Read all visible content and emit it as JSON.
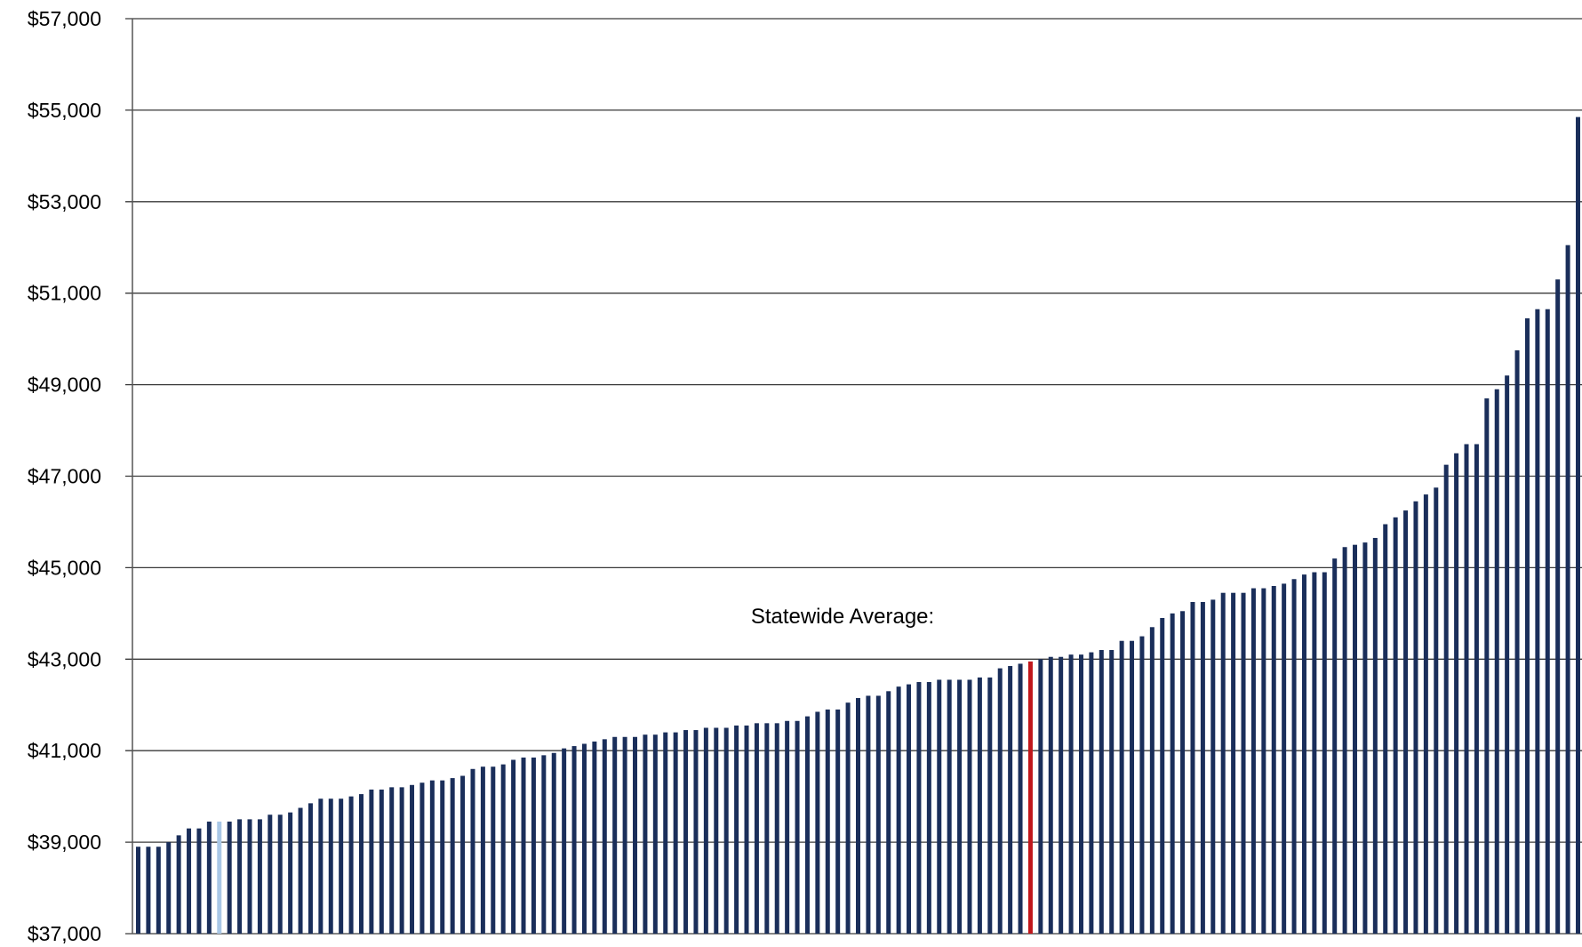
{
  "chart_data": {
    "type": "bar",
    "title": "",
    "xlabel": "",
    "ylabel": "",
    "ylim": [
      37000,
      57000
    ],
    "y_ticks": [
      37000,
      39000,
      41000,
      43000,
      45000,
      47000,
      49000,
      51000,
      53000,
      55000,
      57000
    ],
    "y_tick_labels": [
      "$37,000",
      "$39,000",
      "$41,000",
      "$43,000",
      "$45,000",
      "$47,000",
      "$49,000",
      "$51,000",
      "$53,000",
      "$55,000",
      "$57,000"
    ],
    "grid": true,
    "annotation": "Statewide Average:",
    "values": [
      38900,
      38900,
      38900,
      39000,
      39150,
      39300,
      39300,
      39450,
      39450,
      39450,
      39500,
      39500,
      39500,
      39600,
      39600,
      39650,
      39750,
      39850,
      39950,
      39950,
      39950,
      40000,
      40050,
      40150,
      40150,
      40200,
      40200,
      40250,
      40300,
      40350,
      40350,
      40400,
      40450,
      40600,
      40650,
      40650,
      40700,
      40800,
      40850,
      40850,
      40900,
      40950,
      41050,
      41100,
      41150,
      41200,
      41250,
      41300,
      41300,
      41300,
      41350,
      41350,
      41400,
      41400,
      41450,
      41450,
      41500,
      41500,
      41500,
      41550,
      41550,
      41600,
      41600,
      41600,
      41650,
      41650,
      41750,
      41850,
      41900,
      41900,
      42050,
      42150,
      42200,
      42200,
      42300,
      42400,
      42450,
      42500,
      42500,
      42550,
      42550,
      42550,
      42550,
      42600,
      42600,
      42800,
      42850,
      42900,
      42950,
      43000,
      43050,
      43050,
      43100,
      43100,
      43150,
      43200,
      43200,
      43400,
      43400,
      43500,
      43700,
      43900,
      44000,
      44050,
      44250,
      44250,
      44300,
      44450,
      44450,
      44450,
      44550,
      44550,
      44600,
      44650,
      44750,
      44850,
      44900,
      44900,
      45200,
      45450,
      45500,
      45550,
      45650,
      45950,
      46100,
      46250,
      46450,
      46600,
      46750,
      47250,
      47500,
      47700,
      47700,
      48700,
      48900,
      49200,
      49750,
      50450,
      50650,
      50650,
      51300,
      52050,
      54850
    ],
    "highlights": {
      "light_blue_index": 8,
      "statewide_average_index": 88
    },
    "colors": {
      "bar": "#1a2e5a",
      "bar_highlight_light": "#a9c7e6",
      "bar_statewide_average": "#c0171c",
      "gridline": "#3a3a3a",
      "axis": "#555555"
    }
  }
}
